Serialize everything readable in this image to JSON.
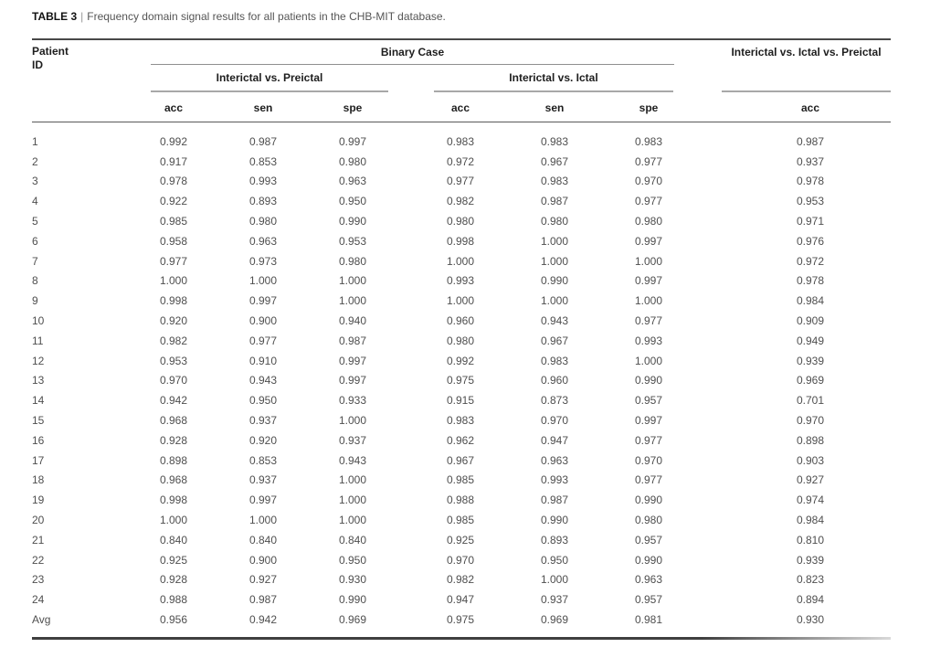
{
  "title": {
    "label": "TABLE 3",
    "separator": "|",
    "text": "Frequency domain signal results for all patients in the CHB-MIT database."
  },
  "table": {
    "patient_header": {
      "line1": "Patient",
      "line2": "ID"
    },
    "group_headers": {
      "binary": "Binary Case",
      "three_class": "Interictal vs. Ictal vs. Preictal"
    },
    "subgroup_headers": {
      "preictal": "Interictal vs. Preictal",
      "ictal": "Interictal vs. Ictal"
    },
    "column_headers": [
      "acc",
      "sen",
      "spe",
      "acc",
      "sen",
      "spe",
      "acc"
    ],
    "rows": [
      {
        "id": "1",
        "values": [
          "0.992",
          "0.987",
          "0.997",
          "0.983",
          "0.983",
          "0.983",
          "0.987"
        ]
      },
      {
        "id": "2",
        "values": [
          "0.917",
          "0.853",
          "0.980",
          "0.972",
          "0.967",
          "0.977",
          "0.937"
        ]
      },
      {
        "id": "3",
        "values": [
          "0.978",
          "0.993",
          "0.963",
          "0.977",
          "0.983",
          "0.970",
          "0.978"
        ]
      },
      {
        "id": "4",
        "values": [
          "0.922",
          "0.893",
          "0.950",
          "0.982",
          "0.987",
          "0.977",
          "0.953"
        ]
      },
      {
        "id": "5",
        "values": [
          "0.985",
          "0.980",
          "0.990",
          "0.980",
          "0.980",
          "0.980",
          "0.971"
        ]
      },
      {
        "id": "6",
        "values": [
          "0.958",
          "0.963",
          "0.953",
          "0.998",
          "1.000",
          "0.997",
          "0.976"
        ]
      },
      {
        "id": "7",
        "values": [
          "0.977",
          "0.973",
          "0.980",
          "1.000",
          "1.000",
          "1.000",
          "0.972"
        ]
      },
      {
        "id": "8",
        "values": [
          "1.000",
          "1.000",
          "1.000",
          "0.993",
          "0.990",
          "0.997",
          "0.978"
        ]
      },
      {
        "id": "9",
        "values": [
          "0.998",
          "0.997",
          "1.000",
          "1.000",
          "1.000",
          "1.000",
          "0.984"
        ]
      },
      {
        "id": "10",
        "values": [
          "0.920",
          "0.900",
          "0.940",
          "0.960",
          "0.943",
          "0.977",
          "0.909"
        ]
      },
      {
        "id": "11",
        "values": [
          "0.982",
          "0.977",
          "0.987",
          "0.980",
          "0.967",
          "0.993",
          "0.949"
        ]
      },
      {
        "id": "12",
        "values": [
          "0.953",
          "0.910",
          "0.997",
          "0.992",
          "0.983",
          "1.000",
          "0.939"
        ]
      },
      {
        "id": "13",
        "values": [
          "0.970",
          "0.943",
          "0.997",
          "0.975",
          "0.960",
          "0.990",
          "0.969"
        ]
      },
      {
        "id": "14",
        "values": [
          "0.942",
          "0.950",
          "0.933",
          "0.915",
          "0.873",
          "0.957",
          "0.701"
        ]
      },
      {
        "id": "15",
        "values": [
          "0.968",
          "0.937",
          "1.000",
          "0.983",
          "0.970",
          "0.997",
          "0.970"
        ]
      },
      {
        "id": "16",
        "values": [
          "0.928",
          "0.920",
          "0.937",
          "0.962",
          "0.947",
          "0.977",
          "0.898"
        ]
      },
      {
        "id": "17",
        "values": [
          "0.898",
          "0.853",
          "0.943",
          "0.967",
          "0.963",
          "0.970",
          "0.903"
        ]
      },
      {
        "id": "18",
        "values": [
          "0.968",
          "0.937",
          "1.000",
          "0.985",
          "0.993",
          "0.977",
          "0.927"
        ]
      },
      {
        "id": "19",
        "values": [
          "0.998",
          "0.997",
          "1.000",
          "0.988",
          "0.987",
          "0.990",
          "0.974"
        ]
      },
      {
        "id": "20",
        "values": [
          "1.000",
          "1.000",
          "1.000",
          "0.985",
          "0.990",
          "0.980",
          "0.984"
        ]
      },
      {
        "id": "21",
        "values": [
          "0.840",
          "0.840",
          "0.840",
          "0.925",
          "0.893",
          "0.957",
          "0.810"
        ]
      },
      {
        "id": "22",
        "values": [
          "0.925",
          "0.900",
          "0.950",
          "0.970",
          "0.950",
          "0.990",
          "0.939"
        ]
      },
      {
        "id": "23",
        "values": [
          "0.928",
          "0.927",
          "0.930",
          "0.982",
          "1.000",
          "0.963",
          "0.823"
        ]
      },
      {
        "id": "24",
        "values": [
          "0.988",
          "0.987",
          "0.990",
          "0.947",
          "0.937",
          "0.957",
          "0.894"
        ]
      },
      {
        "id": "Avg",
        "values": [
          "0.956",
          "0.942",
          "0.969",
          "0.975",
          "0.969",
          "0.981",
          "0.930"
        ]
      }
    ]
  },
  "colors": {
    "rule_dark": "#484848",
    "rule_light": "#a8a8a8",
    "body_text": "#4f4f4f",
    "heading_text": "#1e1e1e",
    "background": "#ffffff"
  }
}
